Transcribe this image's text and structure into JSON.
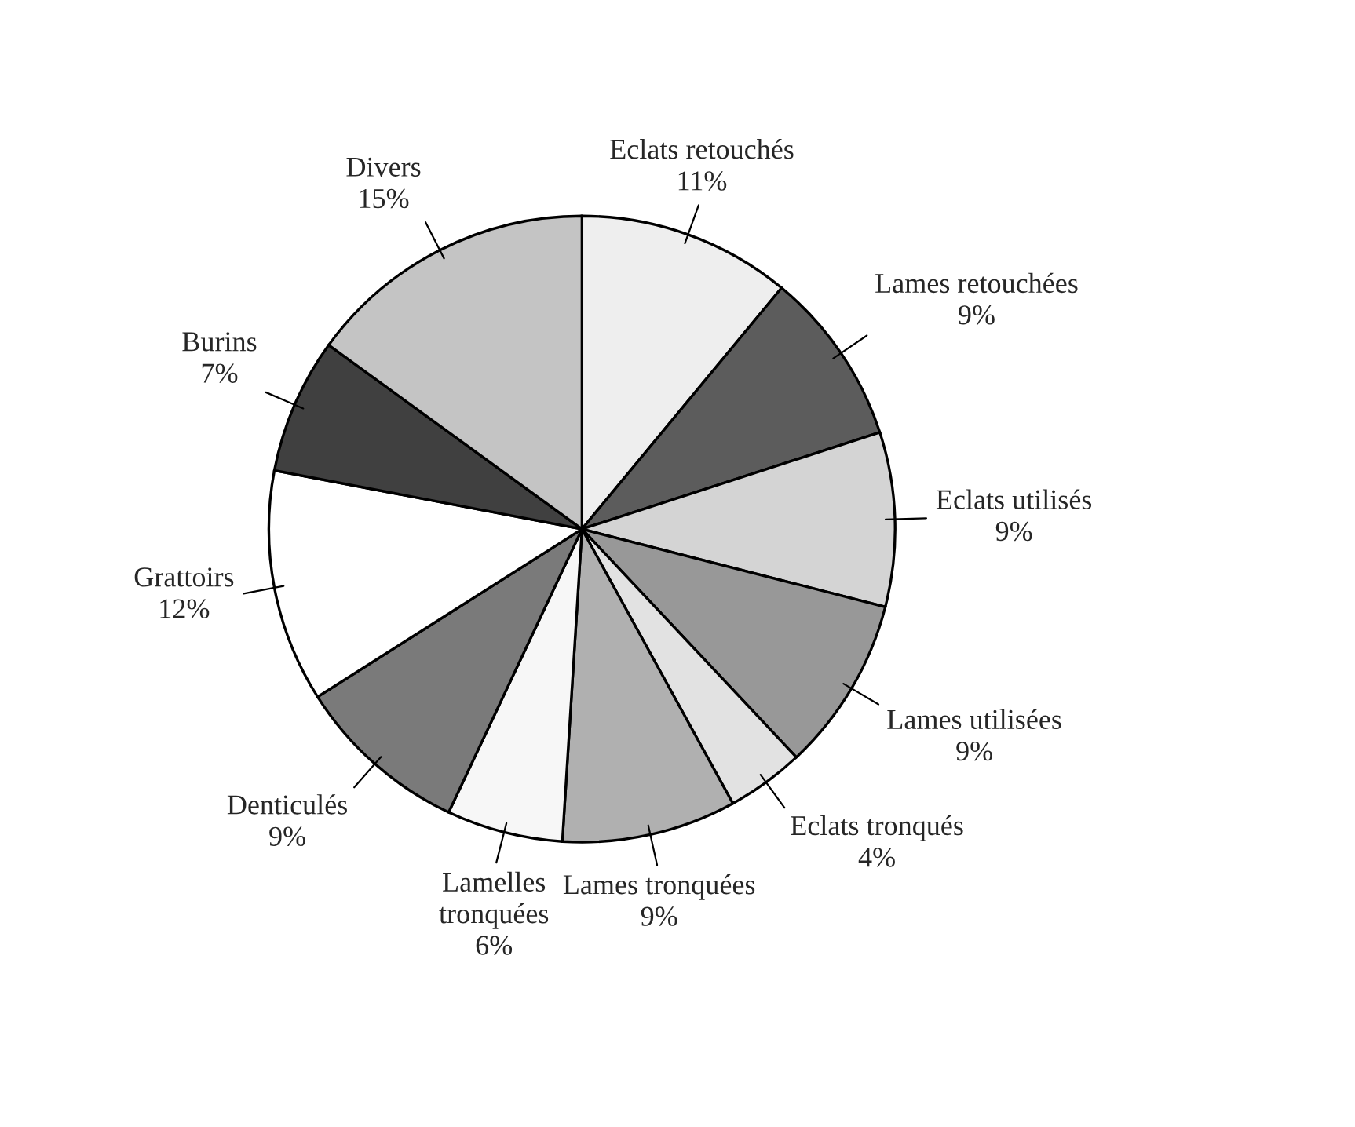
{
  "chart_data": {
    "type": "pie",
    "categories": [
      "Eclats retouchés",
      "Lames retouchées",
      "Eclats utilisés",
      "Lames utilisées",
      "Eclats tronqués",
      "Lames tronquées",
      "Lamelles\ntronquées",
      "Denticulés",
      "Grattoirs",
      "Burins",
      "Divers"
    ],
    "values": [
      11,
      9,
      9,
      9,
      4,
      9,
      6,
      9,
      12,
      7,
      15
    ],
    "value_labels": [
      "11%",
      "9%",
      "9%",
      "9%",
      "4%",
      "9%",
      "6%",
      "9%",
      "12%",
      "7%",
      "15%"
    ],
    "colors": [
      "#eeeeee",
      "#5c5c5c",
      "#d4d4d4",
      "#989898",
      "#e2e2e2",
      "#b0b0b0",
      "#f7f7f7",
      "#7a7a7a",
      "#ffffff",
      "#404040",
      "#c4c4c4"
    ]
  }
}
